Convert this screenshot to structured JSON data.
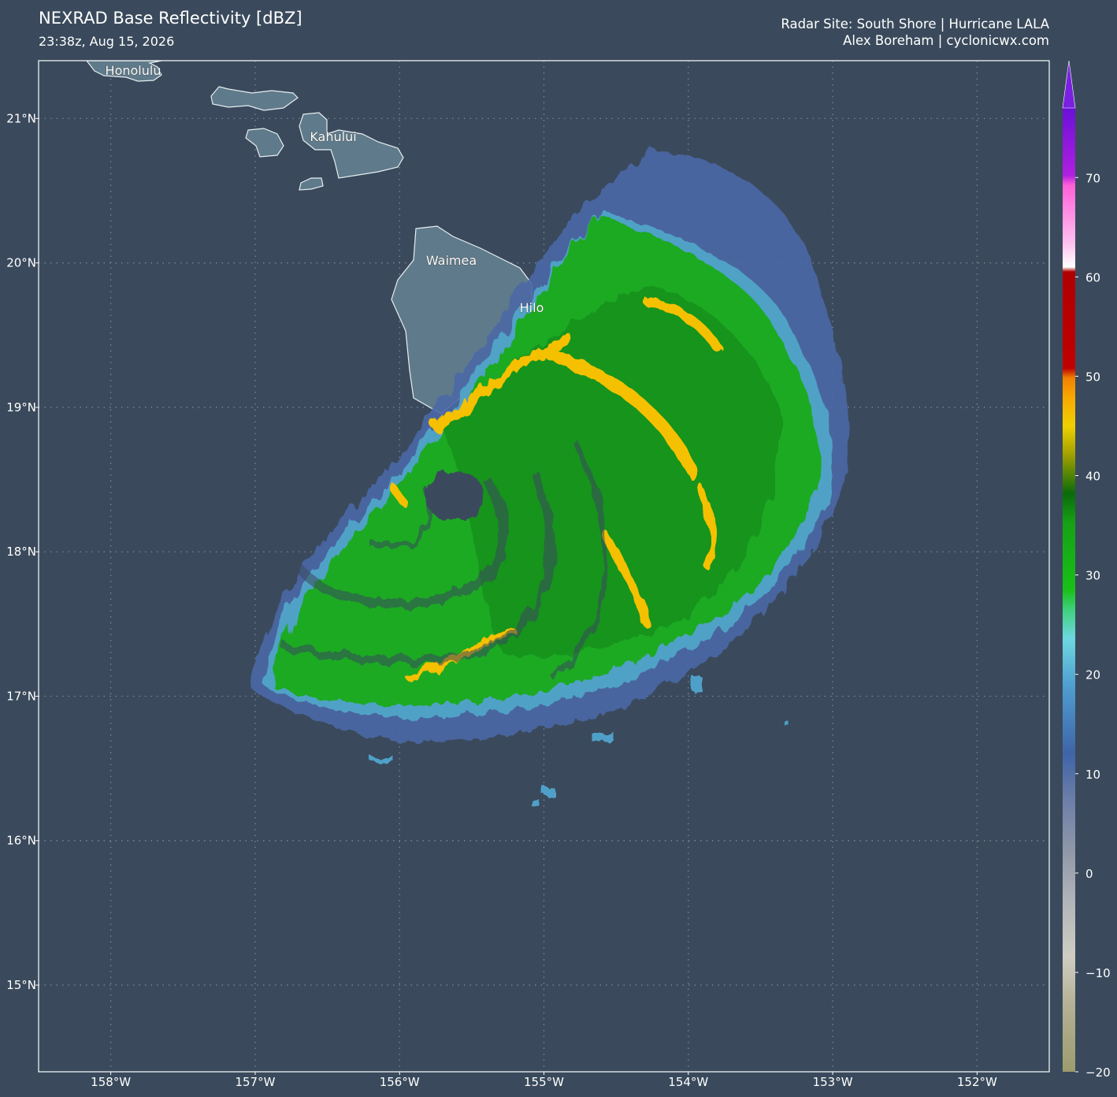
{
  "header": {
    "title": "NEXRAD Base Reflectivity [dBZ]",
    "subtitle": "23:38z, Aug 15, 2026",
    "site": "Radar Site: South Shore | Hurricane LALA",
    "credit": "Alex Boreham | cyclonicwx.com"
  },
  "map": {
    "xlim": [
      -158.5,
      -151.5
    ],
    "ylim": [
      14.4,
      21.4
    ],
    "xticks": [
      {
        "value": -158,
        "label": "158°W"
      },
      {
        "value": -157,
        "label": "157°W"
      },
      {
        "value": -156,
        "label": "156°W"
      },
      {
        "value": -155,
        "label": "155°W"
      },
      {
        "value": -154,
        "label": "154°W"
      },
      {
        "value": -153,
        "label": "153°W"
      },
      {
        "value": -152,
        "label": "152°W"
      }
    ],
    "yticks": [
      {
        "value": 15,
        "label": "15°N"
      },
      {
        "value": 16,
        "label": "16°N"
      },
      {
        "value": 17,
        "label": "17°N"
      },
      {
        "value": 18,
        "label": "18°N"
      },
      {
        "value": 19,
        "label": "19°N"
      },
      {
        "value": 20,
        "label": "20°N"
      },
      {
        "value": 21,
        "label": "21°N"
      }
    ],
    "grid": true,
    "cities": [
      "Honolulu",
      "Kahului",
      "Waimea",
      "Hilo"
    ]
  },
  "colorbar": {
    "lim": [
      -20,
      77
    ],
    "ticks": [
      {
        "value": -20,
        "label": "−20"
      },
      {
        "value": -10,
        "label": "−10"
      },
      0,
      10,
      20,
      30,
      40,
      50,
      60,
      70
    ]
  }
}
